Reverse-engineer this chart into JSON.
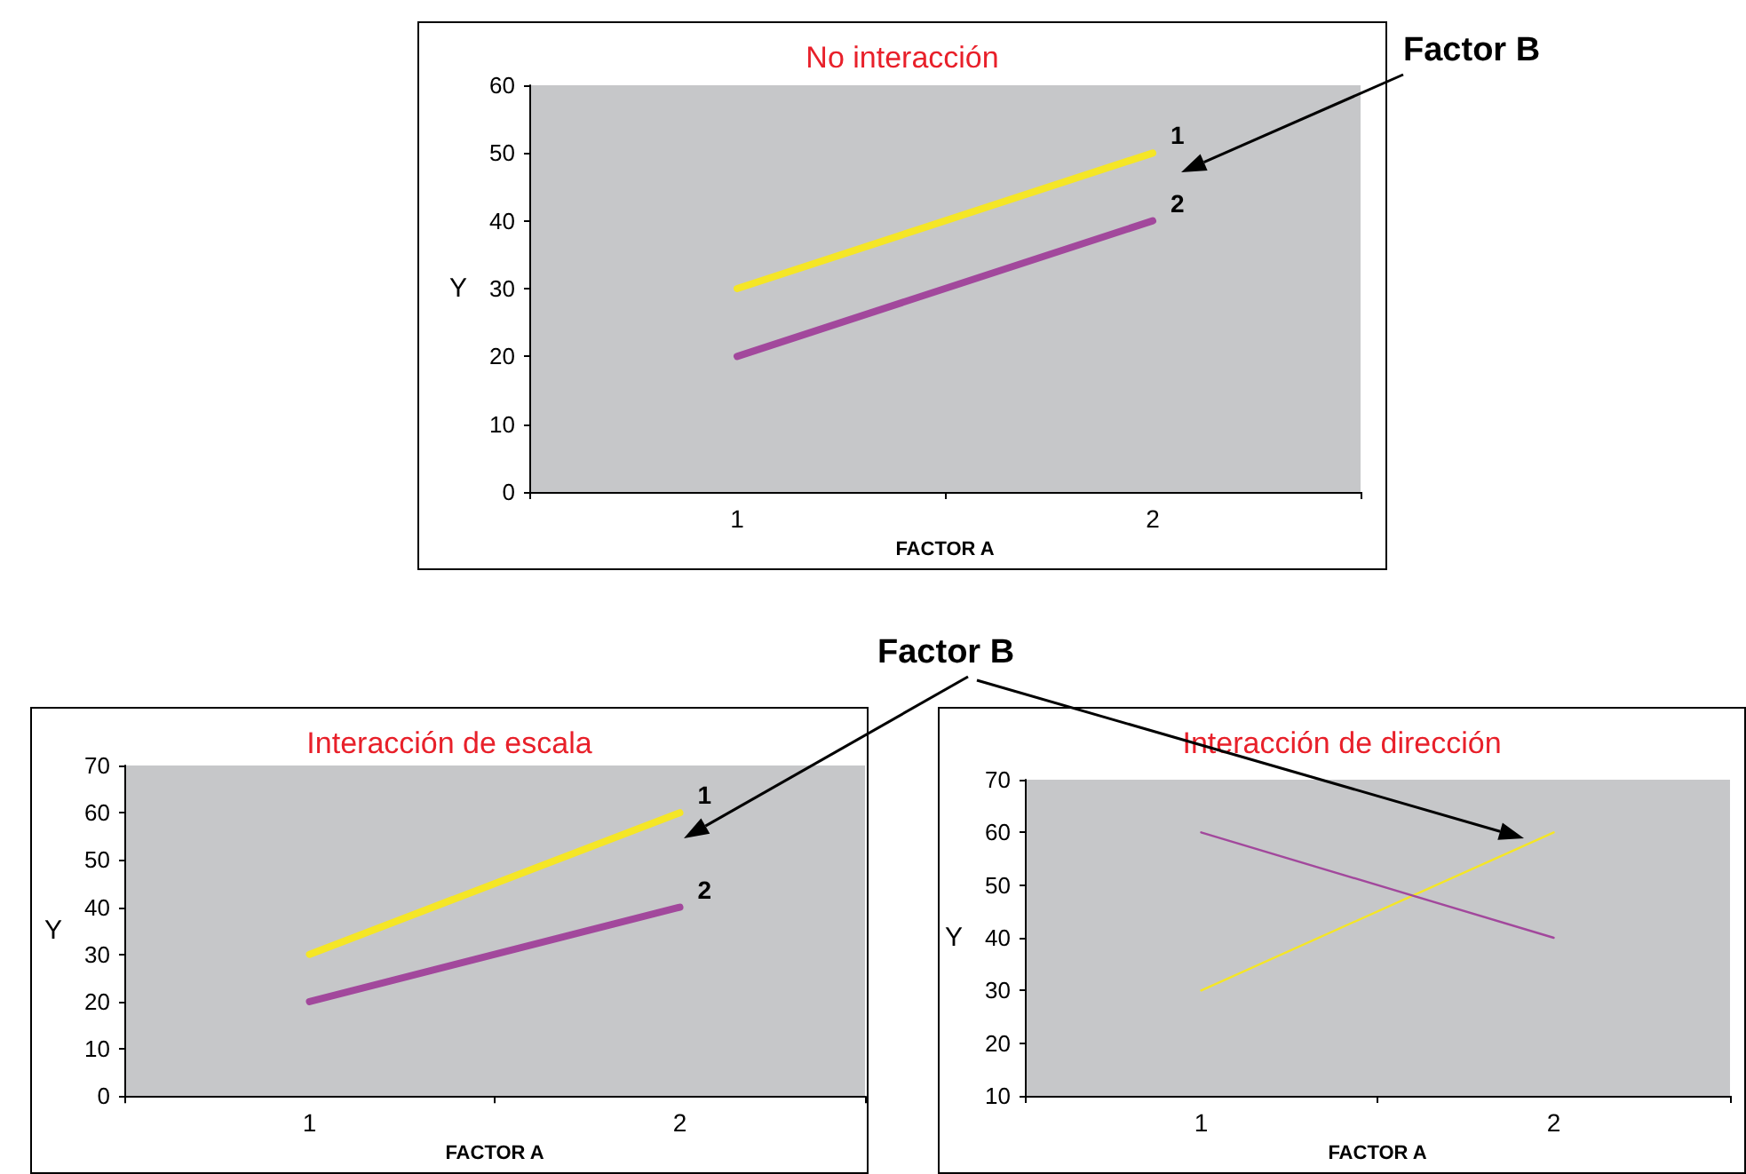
{
  "chart_data": [
    {
      "type": "line",
      "title": "No interacción",
      "xlabel": "FACTOR A",
      "ylabel": "Y",
      "categories": [
        "1",
        "2"
      ],
      "ylim": [
        0,
        60
      ],
      "yticks": [
        0,
        10,
        20,
        30,
        40,
        50,
        60
      ],
      "grid": false,
      "legend": false,
      "marker": "none",
      "line_style": "solid",
      "annotations": [
        "Factor B"
      ],
      "series": [
        {
          "name": "1",
          "color": "#f5e626",
          "values": [
            30,
            50
          ]
        },
        {
          "name": "2",
          "color": "#a2489c",
          "values": [
            20,
            40
          ]
        }
      ]
    },
    {
      "type": "line",
      "title": "Interacción de escala",
      "xlabel": "FACTOR A",
      "ylabel": "Y",
      "categories": [
        "1",
        "2"
      ],
      "ylim": [
        0,
        70
      ],
      "yticks": [
        0,
        10,
        20,
        30,
        40,
        50,
        60,
        70
      ],
      "grid": false,
      "legend": false,
      "marker": "none",
      "line_style": "solid",
      "annotations": [
        "Factor B"
      ],
      "series": [
        {
          "name": "1",
          "color": "#f5e626",
          "values": [
            30,
            60
          ]
        },
        {
          "name": "2",
          "color": "#a2489c",
          "values": [
            20,
            40
          ]
        }
      ]
    },
    {
      "type": "line",
      "title": "Interacción de dirección",
      "xlabel": "FACTOR A",
      "ylabel": "Y",
      "categories": [
        "1",
        "2"
      ],
      "ylim": [
        10,
        70
      ],
      "yticks": [
        10,
        20,
        30,
        40,
        50,
        60,
        70
      ],
      "grid": false,
      "legend": false,
      "marker": "none",
      "line_style": "solid",
      "series": [
        {
          "color": "#f5e626",
          "values": [
            30,
            60
          ]
        },
        {
          "color": "#a2489c",
          "values": [
            60,
            40
          ]
        }
      ]
    }
  ]
}
